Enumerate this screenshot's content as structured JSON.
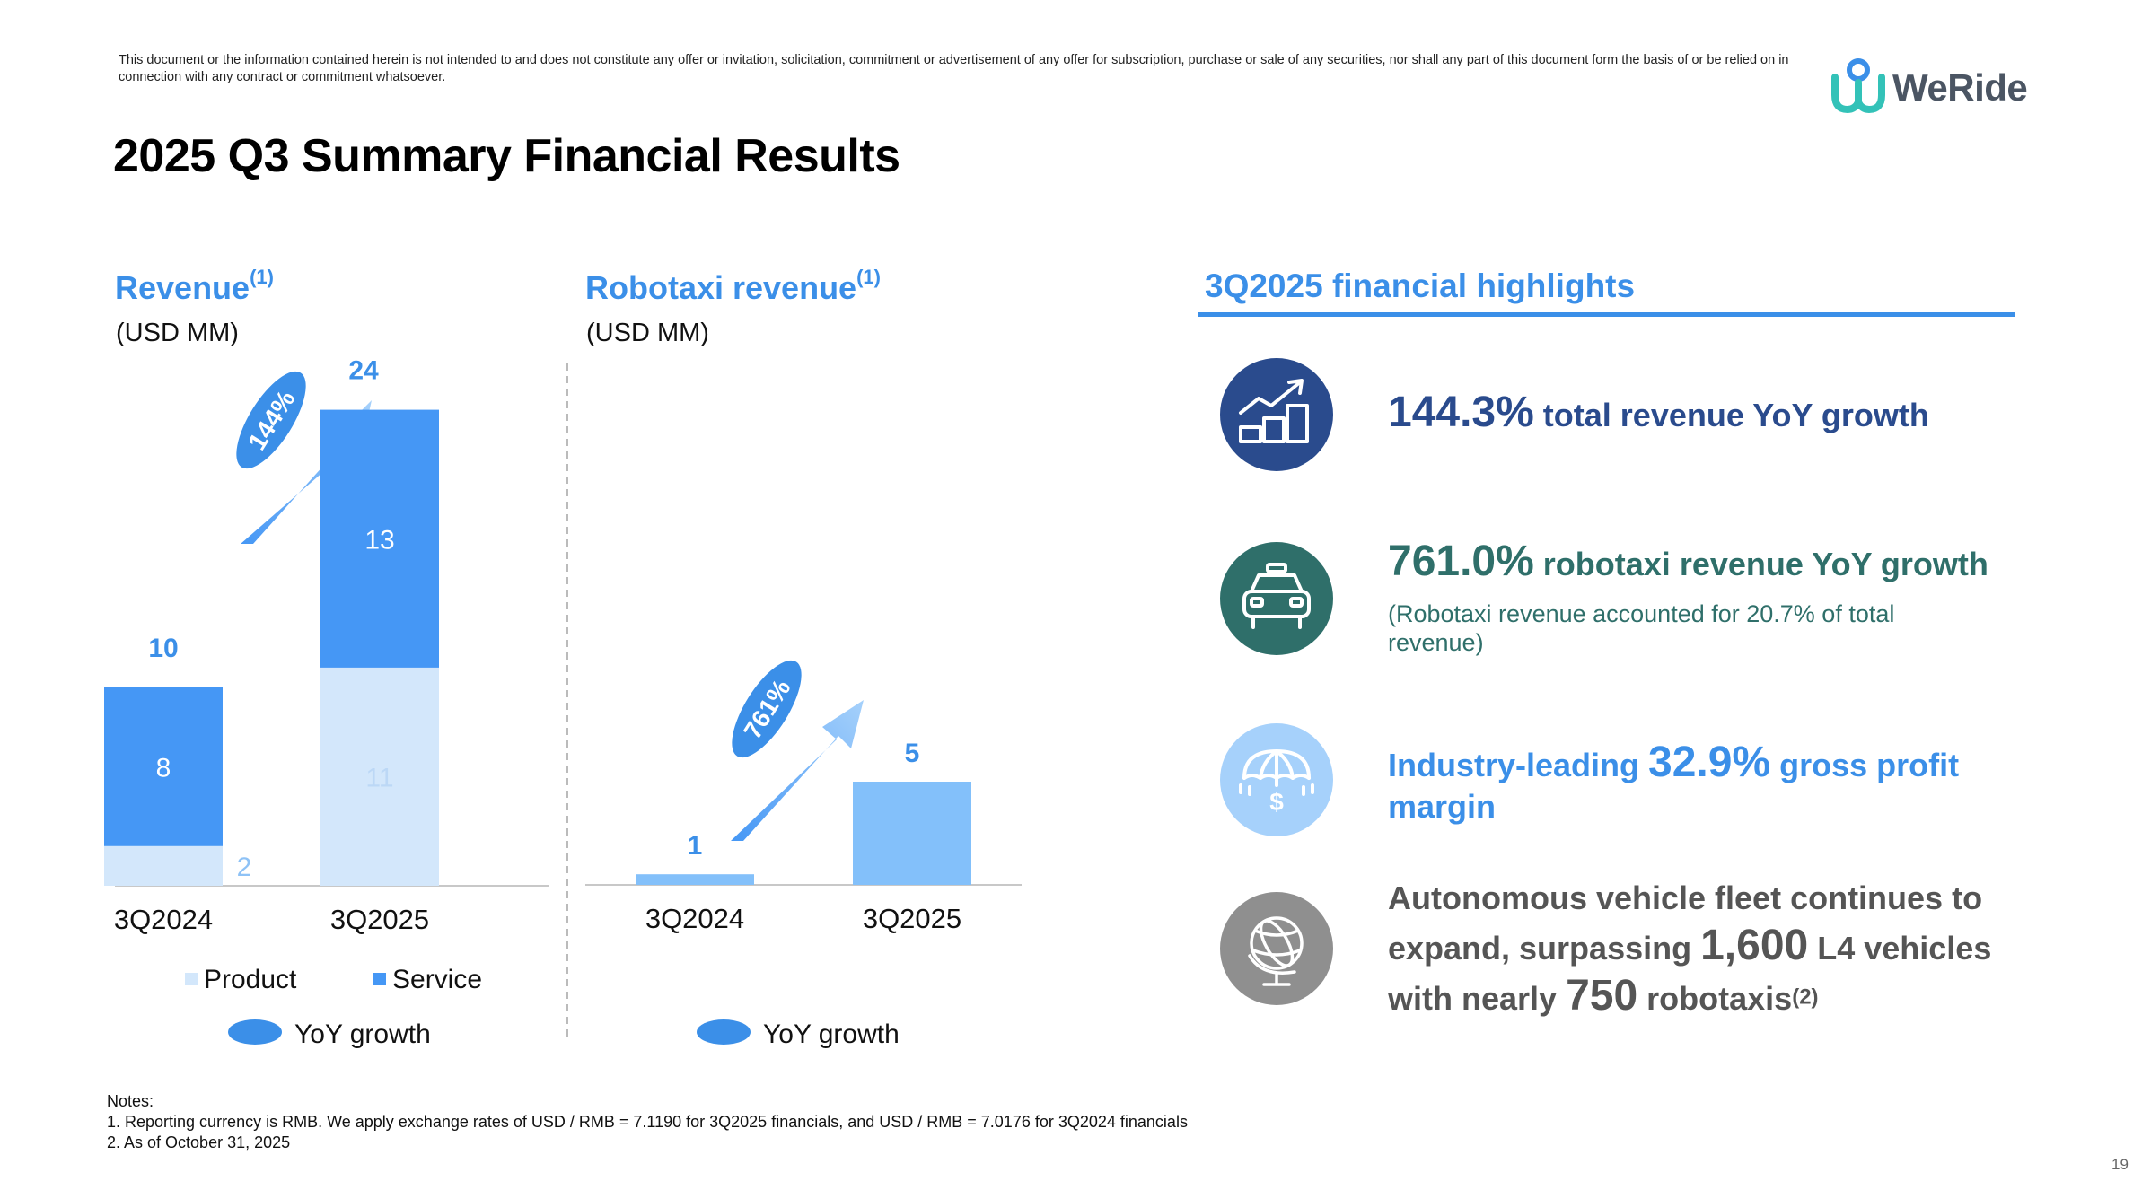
{
  "disclaimer": "This document or the information contained herein is not intended to and does not constitute any offer or invitation, solicitation, commitment or advertisement of any offer for subscription, purchase or sale of any securities, nor shall any part of this document form the basis of or be relied on in connection with any contract or commitment whatsoever.",
  "logo": {
    "text": "WeRide",
    "colors": {
      "teal": "#33c2b8",
      "blue": "#3b8fe8",
      "text": "#4b5563"
    }
  },
  "title": "2025 Q3 Summary Financial Results",
  "colors": {
    "accent_blue": "#3b8fe8",
    "service": "#4597f5",
    "product": "#d3e7fb",
    "robotaxi_bar": "#83c0fa",
    "navy": "#2a4b8d",
    "teal": "#2f6f6a",
    "light_blue": "#a6d1fb",
    "grey": "#555555"
  },
  "chart_data": [
    {
      "type": "bar",
      "stacked": true,
      "title": "Revenue",
      "title_sup": "(1)",
      "unit": "(USD MM)",
      "categories": [
        "3Q2024",
        "3Q2025"
      ],
      "series": [
        {
          "name": "Product",
          "values": [
            2,
            11
          ],
          "color": "#d3e7fb"
        },
        {
          "name": "Service",
          "values": [
            8,
            13
          ],
          "color": "#4597f5"
        }
      ],
      "totals": [
        10,
        24
      ],
      "yoy_growth": "144%",
      "legend_yoy": "YoY growth"
    },
    {
      "type": "bar",
      "title": "Robotaxi revenue",
      "title_sup": "(1)",
      "unit": "(USD MM)",
      "categories": [
        "3Q2024",
        "3Q2025"
      ],
      "values": [
        1,
        5
      ],
      "bar_values": [
        0.6,
        5
      ],
      "yoy_growth": "761%",
      "legend_yoy": "YoY growth"
    }
  ],
  "highlights": {
    "title": "3Q2025 financial highlights",
    "items": [
      {
        "icon": "bar-chart-growth-icon",
        "big": "144.3%",
        "text": " total revenue YoY growth"
      },
      {
        "icon": "car-icon",
        "big": "761.0%",
        "text": " robotaxi revenue YoY growth",
        "note_1": "(Robotaxi revenue accounted for 20.7% of total",
        "note_2": "revenue)"
      },
      {
        "icon": "umbrella-dollar-icon",
        "pre": "Industry-leading ",
        "big": "32.9%",
        "text": " gross profit",
        "line2": "margin"
      },
      {
        "icon": "globe-icon",
        "line1": "Autonomous vehicle fleet continues to",
        "line2_pre": "expand, surpassing ",
        "line2_big": "1,600",
        "line2_post": " L4 vehicles",
        "line3_pre": "with nearly ",
        "line3_big": "750",
        "line3_post": " robotaxis",
        "line3_sup": "(2)"
      }
    ]
  },
  "notes": {
    "label": "Notes:",
    "items": [
      "1. Reporting currency is RMB. We apply exchange rates of USD / RMB = 7.1190 for 3Q2025 financials, and USD / RMB = 7.0176 for 3Q2024 financials",
      "2. As of October 31, 2025"
    ]
  },
  "page_number": "19"
}
